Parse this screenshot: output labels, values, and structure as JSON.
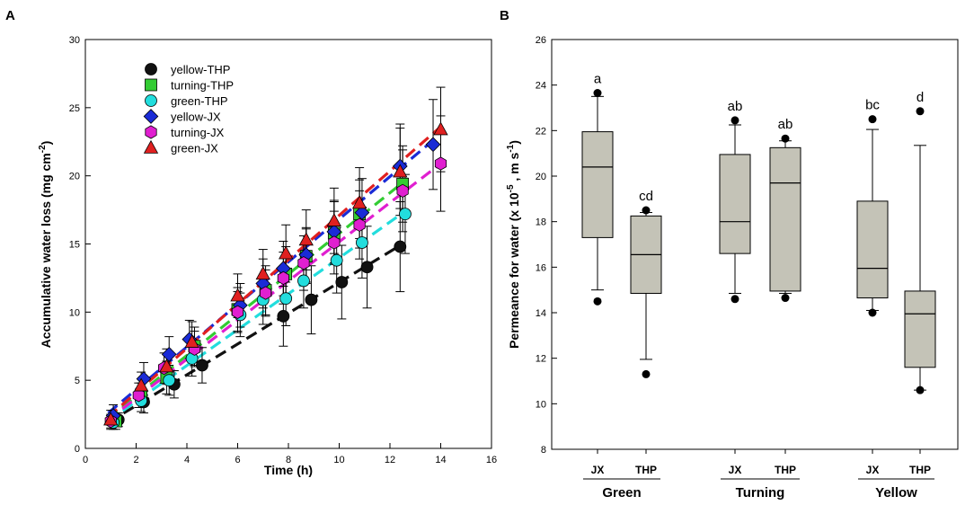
{
  "chart_data": [
    {
      "panel": "A",
      "type": "scatter",
      "xlabel": "Time  (h)",
      "ylabel": "Accumulative water loss (mg cm",
      "ylabel_sup": "-2",
      "ylabel_end": ")",
      "xlim": [
        0,
        16
      ],
      "ylim": [
        0,
        30
      ],
      "xticks": [
        0,
        2,
        4,
        6,
        8,
        10,
        12,
        14,
        16
      ],
      "yticks": [
        0,
        5,
        10,
        15,
        20,
        25,
        30
      ],
      "legend_position": "top-left",
      "series": [
        {
          "name": "yellow-THP",
          "marker": "circle",
          "color": "#111111",
          "x": [
            1.3,
            2.3,
            3.5,
            4.6,
            7.8,
            8.9,
            10.1,
            11.1,
            12.4
          ],
          "y": [
            2.1,
            3.4,
            4.7,
            6.1,
            9.7,
            10.9,
            12.2,
            13.3,
            14.8
          ],
          "err": [
            0.5,
            0.8,
            1.0,
            1.3,
            2.2,
            2.5,
            2.7,
            3.0,
            3.3
          ],
          "fit": [
            [
              0.9,
              1.9
            ],
            [
              12.5,
              15.0
            ]
          ]
        },
        {
          "name": "turning-THP",
          "marker": "square",
          "color": "#33cc33",
          "x": [
            1.2,
            2.2,
            3.2,
            4.3,
            6.0,
            7.1,
            7.9,
            8.7,
            9.8,
            10.8,
            12.5
          ],
          "y": [
            2.0,
            3.9,
            5.2,
            7.5,
            10.2,
            11.6,
            12.8,
            14.1,
            15.8,
            17.2,
            19.4
          ],
          "err": [
            0.6,
            0.9,
            1.2,
            1.4,
            1.6,
            1.8,
            2.0,
            2.0,
            2.3,
            2.5,
            2.8
          ],
          "fit": [
            [
              0.9,
              2.2
            ],
            [
              12.5,
              19.5
            ]
          ]
        },
        {
          "name": "green-THP",
          "marker": "circle",
          "color": "#22dddd",
          "x": [
            1.1,
            2.2,
            3.3,
            4.2,
            6.1,
            7.0,
            7.9,
            8.6,
            9.9,
            10.9,
            12.6
          ],
          "y": [
            1.9,
            3.5,
            5.0,
            6.6,
            9.8,
            10.9,
            11.0,
            12.3,
            13.8,
            15.1,
            17.2
          ],
          "err": [
            0.5,
            0.8,
            1.1,
            1.3,
            1.6,
            1.8,
            2.0,
            2.0,
            2.4,
            2.6,
            2.9
          ],
          "fit": [
            [
              0.9,
              2.0
            ],
            [
              12.6,
              17.4
            ]
          ]
        },
        {
          "name": "yellow-JX",
          "marker": "diamond",
          "color": "#1a2bd6",
          "x": [
            1.1,
            2.3,
            3.3,
            4.1,
            6.1,
            7.0,
            7.8,
            8.7,
            9.8,
            10.9,
            12.4,
            13.7
          ],
          "y": [
            2.4,
            5.1,
            6.9,
            8.0,
            10.5,
            12.1,
            13.2,
            14.2,
            15.9,
            17.3,
            20.7,
            22.3
          ],
          "err": [
            0.8,
            1.2,
            1.3,
            1.4,
            1.6,
            1.8,
            2.0,
            2.0,
            2.3,
            2.5,
            3.1,
            3.3
          ],
          "fit": [
            [
              0.9,
              2.6
            ],
            [
              13.7,
              22.6
            ]
          ]
        },
        {
          "name": "turning-JX",
          "marker": "hexagon",
          "color": "#e01fd0",
          "x": [
            1.0,
            2.1,
            3.1,
            4.3,
            6.0,
            7.1,
            7.8,
            8.6,
            9.8,
            10.8,
            12.5,
            14.0
          ],
          "y": [
            2.0,
            3.9,
            5.9,
            7.3,
            10.0,
            11.4,
            12.5,
            13.6,
            15.1,
            16.4,
            18.9,
            20.9
          ],
          "err": [
            0.5,
            0.9,
            1.1,
            1.3,
            1.5,
            1.7,
            1.9,
            2.0,
            2.3,
            2.5,
            3.0,
            3.5
          ],
          "fit": [
            [
              0.9,
              2.1
            ],
            [
              14.0,
              20.9
            ]
          ]
        },
        {
          "name": "green-JX",
          "marker": "triangle",
          "color": "#e02020",
          "x": [
            1.0,
            2.2,
            3.2,
            4.2,
            6.0,
            7.0,
            7.9,
            8.7,
            9.8,
            10.8,
            12.4,
            14.0
          ],
          "y": [
            2.1,
            4.6,
            6.0,
            7.8,
            11.2,
            12.8,
            14.3,
            15.3,
            16.7,
            18.0,
            20.3,
            23.4
          ],
          "err": [
            0.7,
            1.0,
            1.3,
            1.5,
            1.6,
            1.8,
            2.1,
            2.2,
            2.4,
            2.6,
            3.2,
            3.1
          ],
          "fit": [
            [
              0.9,
              2.3
            ],
            [
              14.0,
              23.6
            ]
          ]
        }
      ]
    },
    {
      "panel": "B",
      "type": "box",
      "ylabel": "Permeance for water (x 10",
      "ylabel_sup1": "-5",
      "ylabel_mid": " , m s",
      "ylabel_sup2": "-1",
      "ylabel_end": ")",
      "ylim": [
        8,
        26
      ],
      "yticks": [
        8,
        10,
        12,
        14,
        16,
        18,
        20,
        22,
        24,
        26
      ],
      "groups": [
        "Green",
        "Turning",
        "Yellow"
      ],
      "boxes": [
        {
          "group": "Green",
          "label": "JX",
          "letter": "a",
          "whisker_low": 15.0,
          "q1": 17.3,
          "median": 20.4,
          "q3": 21.95,
          "whisker_high": 23.5,
          "outliers": [
            14.5,
            23.65
          ]
        },
        {
          "group": "Green",
          "label": "THP",
          "letter": "cd",
          "whisker_low": 11.95,
          "q1": 14.85,
          "median": 16.55,
          "q3": 18.25,
          "whisker_high": 18.4,
          "outliers": [
            11.3,
            18.5
          ]
        },
        {
          "group": "Turning",
          "label": "JX",
          "letter": "ab",
          "whisker_low": 14.85,
          "q1": 16.6,
          "median": 18.0,
          "q3": 20.95,
          "whisker_high": 22.25,
          "outliers": [
            14.6,
            22.45
          ]
        },
        {
          "group": "Turning",
          "label": "THP",
          "letter": "ab",
          "whisker_low": 14.85,
          "q1": 14.95,
          "median": 19.7,
          "q3": 21.25,
          "whisker_high": 21.55,
          "outliers": [
            14.65,
            21.65
          ]
        },
        {
          "group": "Yellow",
          "label": "JX",
          "letter": "bc",
          "whisker_low": 14.1,
          "q1": 14.65,
          "median": 15.95,
          "q3": 18.9,
          "whisker_high": 22.05,
          "outliers": [
            14.0,
            22.5
          ]
        },
        {
          "group": "Yellow",
          "label": "THP",
          "letter": "d",
          "whisker_low": 10.6,
          "q1": 11.6,
          "median": 13.95,
          "q3": 14.95,
          "whisker_high": 21.35,
          "outliers": [
            10.6,
            22.85
          ]
        }
      ],
      "box_color": "#c4c3b7"
    }
  ]
}
